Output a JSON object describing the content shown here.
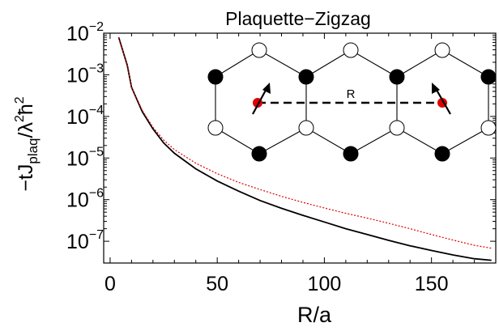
{
  "chart_data": {
    "type": "line",
    "title": "Plaquette−Zigzag",
    "xlabel": "R/a",
    "ylabel": "−tJ_plaq/λ²ħ²",
    "xlim": [
      -3,
      180
    ],
    "ylim": [
      3e-08,
      0.01
    ],
    "y_scale": "log",
    "grid": false,
    "x_ticks": [
      0,
      50,
      100,
      150
    ],
    "x_tick_labels": [
      "0",
      "50",
      "100",
      "150"
    ],
    "y_ticks": [
      1e-07,
      1e-06,
      1e-05,
      0.0001,
      0.001,
      0.01
    ],
    "y_tick_labels": [
      {
        "base": "10",
        "exp": "−7"
      },
      {
        "base": "10",
        "exp": "−6"
      },
      {
        "base": "10",
        "exp": "−5"
      },
      {
        "base": "10",
        "exp": "−4"
      },
      {
        "base": "10",
        "exp": "−3"
      },
      {
        "base": "10",
        "exp": "−2"
      }
    ],
    "series": [
      {
        "color": "#000000",
        "style": "solid",
        "x": [
          4,
          8,
          10,
          15,
          20,
          25,
          30,
          40,
          50,
          60,
          70,
          80,
          90,
          100,
          110,
          120,
          130,
          140,
          150,
          160,
          170,
          178
        ],
        "y": [
          0.008,
          0.0017,
          0.0005,
          0.00013,
          5e-05,
          2.3e-05,
          1.3e-05,
          5.5e-06,
          2.8e-06,
          1.6e-06,
          9.5e-07,
          6.2e-07,
          4.2e-07,
          2.9e-07,
          2e-07,
          1.45e-07,
          1.05e-07,
          7.8e-08,
          6e-08,
          4.7e-08,
          3.8e-08,
          3.5e-08
        ]
      },
      {
        "color": "#e00000",
        "style": "dotted",
        "x": [
          4,
          8,
          10,
          15,
          20,
          25,
          30,
          40,
          50,
          60,
          70,
          80,
          90,
          100,
          110,
          120,
          130,
          140,
          150,
          160,
          170,
          178
        ],
        "y": [
          0.008,
          0.0017,
          0.0005,
          0.00014,
          5.5e-05,
          2.7e-05,
          1.6e-05,
          7.5e-06,
          4.2e-06,
          2.6e-06,
          1.75e-06,
          1.2e-06,
          8.6e-07,
          6.3e-07,
          4.7e-07,
          3.6e-07,
          2.7e-07,
          2e-07,
          1.45e-07,
          1.07e-07,
          8e-08,
          6.8e-08
        ]
      }
    ],
    "inset": {
      "label": "R",
      "description_colors": {
        "filled_site": "#000000",
        "open_site": "#ffffff",
        "spin_dot": "#e00000"
      }
    }
  }
}
